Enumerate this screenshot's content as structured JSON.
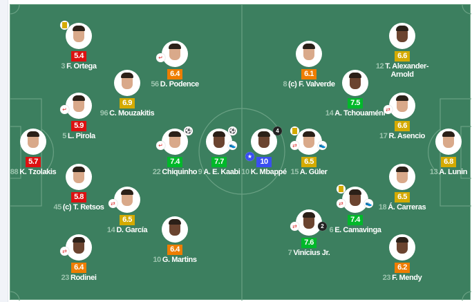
{
  "colors": {
    "pitch": "#3c7f5f",
    "red": "#dd1111",
    "orange": "#ee7d00",
    "yellow": "#d4aa00",
    "green": "#00b82a",
    "blue": "#3a4ff0"
  },
  "home": [
    {
      "num": "3",
      "name": "F. Ortega",
      "rating": "5.4",
      "tier": "red",
      "badges": [
        "yellow-card"
      ]
    },
    {
      "num": "56",
      "name": "D. Podence",
      "rating": "6.4",
      "tier": "orange",
      "badges": [
        "sub-off"
      ]
    },
    {
      "num": "96",
      "name": "C. Mouzakitis",
      "rating": "6.9",
      "tier": "yellow",
      "badges": []
    },
    {
      "num": "5",
      "name": "L. Pirola",
      "rating": "5.9",
      "tier": "red",
      "badges": [
        "sub-off"
      ]
    },
    {
      "num": "88",
      "name": "K. Tzolakis",
      "rating": "5.7",
      "tier": "red",
      "badges": []
    },
    {
      "num": "22",
      "name": "Chiquinho",
      "rating": "7.4",
      "tier": "green",
      "badges": [
        "sub-off",
        "goal"
      ]
    },
    {
      "num": "9",
      "name": "A. E. Kaabi",
      "rating": "7.7",
      "tier": "green",
      "badges": [
        "goal",
        "assist"
      ]
    },
    {
      "num": "45",
      "name": "(c) T. Retsos",
      "rating": "5.8",
      "tier": "red",
      "badges": []
    },
    {
      "num": "14",
      "name": "D. García",
      "rating": "6.5",
      "tier": "yellow",
      "badges": [
        "sub"
      ]
    },
    {
      "num": "10",
      "name": "G. Martins",
      "rating": "6.4",
      "tier": "orange",
      "badges": []
    },
    {
      "num": "23",
      "name": "Rodinei",
      "rating": "6.4",
      "tier": "orange",
      "badges": [
        "sub"
      ]
    }
  ],
  "away": [
    {
      "num": "12",
      "name": "T. Alexander-Arnold",
      "rating": "6.6",
      "tier": "yellow",
      "badges": []
    },
    {
      "num": "8",
      "name": "(c) F. Valverde",
      "rating": "6.1",
      "tier": "orange",
      "badges": []
    },
    {
      "num": "14",
      "name": "A. Tchouaméni",
      "rating": "7.5",
      "tier": "green",
      "badges": []
    },
    {
      "num": "17",
      "name": "R. Asencio",
      "rating": "6.6",
      "tier": "yellow",
      "badges": [
        "sub"
      ]
    },
    {
      "num": "10",
      "name": "K. Mbappé",
      "rating": "10",
      "tier": "blue",
      "badges": [
        "goal-4",
        "star"
      ]
    },
    {
      "num": "15",
      "name": "A. Güler",
      "rating": "6.5",
      "tier": "yellow",
      "badges": [
        "yellow-card",
        "sub",
        "assist"
      ]
    },
    {
      "num": "13",
      "name": "A. Lunin",
      "rating": "6.8",
      "tier": "yellow",
      "badges": []
    },
    {
      "num": "18",
      "name": "Á. Carreras",
      "rating": "6.5",
      "tier": "yellow",
      "badges": []
    },
    {
      "num": "6",
      "name": "E. Camavinga",
      "rating": "7.4",
      "tier": "green",
      "badges": [
        "yellow-card",
        "sub",
        "assist"
      ]
    },
    {
      "num": "7",
      "name": "Vinícius Jr.",
      "rating": "7.6",
      "tier": "green",
      "badges": [
        "sub",
        "assist-2"
      ]
    },
    {
      "num": "23",
      "name": "F. Mendy",
      "rating": "6.2",
      "tier": "orange",
      "badges": []
    }
  ],
  "badge_labels": {
    "goal-4": "4",
    "assist-2": "2"
  }
}
